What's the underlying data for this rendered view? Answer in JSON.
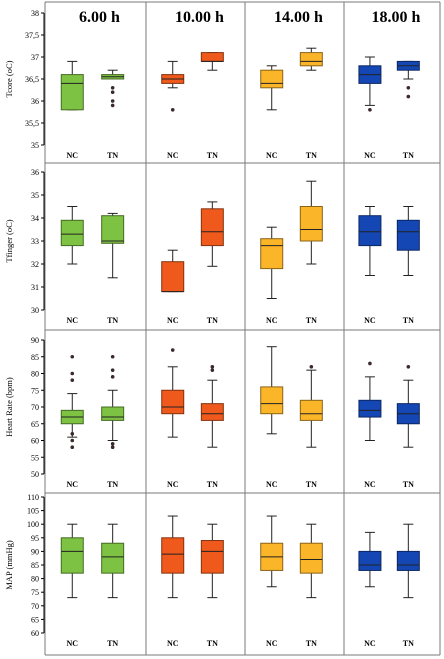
{
  "chart_data": {
    "type": "boxplot",
    "time_points": [
      "6.00 h",
      "10.00 h",
      "14.00 h",
      "18.00 h"
    ],
    "groups": [
      "NC",
      "TN"
    ],
    "colors": [
      "#7dc242",
      "#ef5a1c",
      "#fbb529",
      "#1446b4"
    ],
    "panels": [
      {
        "ylabel": "Tcore (oC)",
        "ylim": [
          35,
          38
        ],
        "ticks": [
          "35",
          "35,5",
          "36",
          "36,5",
          "37",
          "37,5",
          "38"
        ],
        "boxes": [
          [
            {
              "min": 35.8,
              "q1": 35.8,
              "median": 36.4,
              "q3": 36.6,
              "max": 36.9,
              "outliers": []
            },
            {
              "min": 36.5,
              "q1": 36.5,
              "median": 36.55,
              "q3": 36.6,
              "max": 36.7,
              "outliers": [
                36.3,
                36.2,
                36.0,
                35.9
              ]
            }
          ],
          [
            {
              "min": 36.3,
              "q1": 36.4,
              "median": 36.5,
              "q3": 36.6,
              "max": 36.9,
              "outliers": [
                35.8
              ]
            },
            {
              "min": 36.7,
              "q1": 36.9,
              "median": 36.9,
              "q3": 37.1,
              "max": 37.1,
              "outliers": []
            }
          ],
          [
            {
              "min": 35.8,
              "q1": 36.3,
              "median": 36.4,
              "q3": 36.7,
              "max": 36.8,
              "outliers": []
            },
            {
              "min": 36.7,
              "q1": 36.8,
              "median": 36.9,
              "q3": 37.1,
              "max": 37.2,
              "outliers": []
            }
          ],
          [
            {
              "min": 35.9,
              "q1": 36.4,
              "median": 36.6,
              "q3": 36.8,
              "max": 37.0,
              "outliers": [
                35.8
              ]
            },
            {
              "min": 36.5,
              "q1": 36.7,
              "median": 36.8,
              "q3": 36.9,
              "max": 36.9,
              "outliers": [
                36.3,
                36.1
              ]
            }
          ]
        ]
      },
      {
        "ylabel": "Tfinger (oC)",
        "ylim": [
          30,
          36
        ],
        "ticks": [
          "30",
          "31",
          "32",
          "33",
          "34",
          "35",
          "36"
        ],
        "boxes": [
          [
            {
              "min": 32.0,
              "q1": 32.8,
              "median": 33.3,
              "q3": 33.9,
              "max": 34.5,
              "outliers": []
            },
            {
              "min": 31.4,
              "q1": 32.9,
              "median": 33.0,
              "q3": 34.1,
              "max": 34.2,
              "outliers": []
            }
          ],
          [
            {
              "min": 30.8,
              "q1": 30.8,
              "median": 30.8,
              "q3": 32.1,
              "max": 32.6,
              "outliers": []
            },
            {
              "min": 31.9,
              "q1": 32.8,
              "median": 33.4,
              "q3": 34.4,
              "max": 34.7,
              "outliers": []
            }
          ],
          [
            {
              "min": 30.5,
              "q1": 31.8,
              "median": 32.8,
              "q3": 33.1,
              "max": 33.6,
              "outliers": []
            },
            {
              "min": 32.0,
              "q1": 33.0,
              "median": 33.5,
              "q3": 34.5,
              "max": 35.6,
              "outliers": []
            }
          ],
          [
            {
              "min": 31.5,
              "q1": 32.8,
              "median": 33.4,
              "q3": 34.1,
              "max": 34.5,
              "outliers": []
            },
            {
              "min": 31.5,
              "q1": 32.6,
              "median": 33.4,
              "q3": 33.9,
              "max": 34.5,
              "outliers": []
            }
          ]
        ]
      },
      {
        "ylabel": "Heart Rate (bpm)",
        "ylim": [
          50,
          90
        ],
        "ticks": [
          "50",
          "55",
          "60",
          "65",
          "70",
          "75",
          "80",
          "85",
          "90"
        ],
        "boxes": [
          [
            {
              "min": 61,
              "q1": 65,
              "median": 67,
              "q3": 69,
              "max": 74,
              "outliers": [
                85,
                80,
                78,
                62,
                60,
                58
              ]
            },
            {
              "min": 60,
              "q1": 66,
              "median": 67,
              "q3": 70,
              "max": 75,
              "outliers": [
                85,
                81,
                79,
                59,
                58
              ]
            }
          ],
          [
            {
              "min": 61,
              "q1": 68,
              "median": 70,
              "q3": 75,
              "max": 82,
              "outliers": [
                87
              ]
            },
            {
              "min": 58,
              "q1": 66,
              "median": 68,
              "q3": 71,
              "max": 78,
              "outliers": [
                82,
                81
              ]
            }
          ],
          [
            {
              "min": 62,
              "q1": 68,
              "median": 71,
              "q3": 76,
              "max": 88,
              "outliers": []
            },
            {
              "min": 58,
              "q1": 66,
              "median": 68,
              "q3": 72,
              "max": 81,
              "outliers": [
                82
              ]
            }
          ],
          [
            {
              "min": 60,
              "q1": 67,
              "median": 69,
              "q3": 72,
              "max": 79,
              "outliers": [
                83
              ]
            },
            {
              "min": 58,
              "q1": 65,
              "median": 68,
              "q3": 71,
              "max": 78,
              "outliers": [
                82
              ]
            }
          ]
        ]
      },
      {
        "ylabel": "MAP (mmHg)",
        "ylim": [
          60,
          110
        ],
        "ticks": [
          "60",
          "65",
          "70",
          "75",
          "80",
          "85",
          "90",
          "95",
          "100",
          "105",
          "110"
        ],
        "boxes": [
          [
            {
              "min": 73,
              "q1": 82,
              "median": 90,
              "q3": 95,
              "max": 100,
              "outliers": []
            },
            {
              "min": 73,
              "q1": 82,
              "median": 88,
              "q3": 93,
              "max": 100,
              "outliers": []
            }
          ],
          [
            {
              "min": 73,
              "q1": 82,
              "median": 89,
              "q3": 95,
              "max": 103,
              "outliers": []
            },
            {
              "min": 73,
              "q1": 82,
              "median": 90,
              "q3": 94,
              "max": 100,
              "outliers": []
            }
          ],
          [
            {
              "min": 77,
              "q1": 83,
              "median": 88,
              "q3": 93,
              "max": 103,
              "outliers": []
            },
            {
              "min": 73,
              "q1": 82,
              "median": 87,
              "q3": 93,
              "max": 100,
              "outliers": []
            }
          ],
          [
            {
              "min": 77,
              "q1": 83,
              "median": 85,
              "q3": 90,
              "max": 97,
              "outliers": []
            },
            {
              "min": 73,
              "q1": 83,
              "median": 85,
              "q3": 90,
              "max": 100,
              "outliers": []
            }
          ]
        ]
      }
    ]
  }
}
